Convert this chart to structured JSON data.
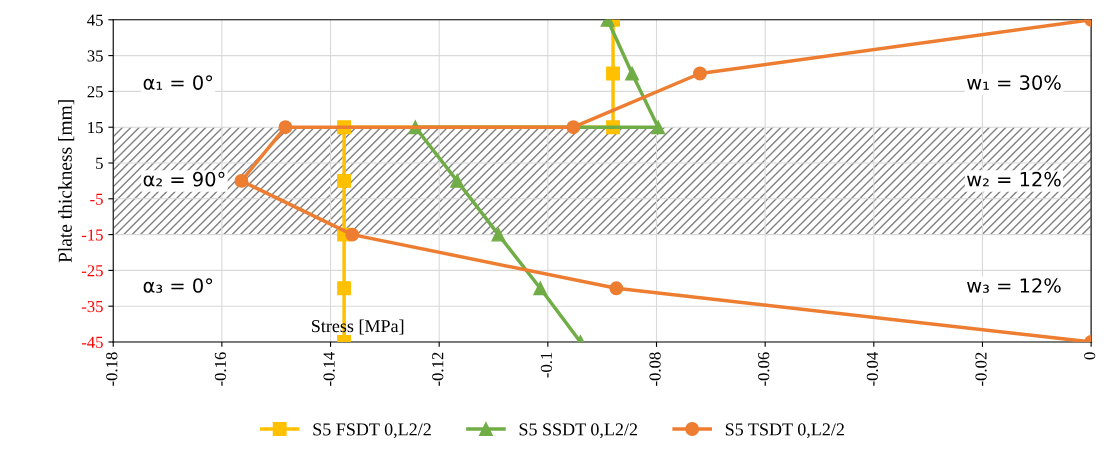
{
  "chart_data": {
    "type": "line",
    "xlabel": "Stress [MPa]",
    "ylabel": "Plate thickness [mm]",
    "series": [
      {
        "name": "S5 FSDT 0,L2/2",
        "color": "#ffc000",
        "marker": "square",
        "x": [
          -0.088,
          -0.088,
          -0.088,
          -0.1375,
          -0.1375,
          -0.1375,
          -0.1375,
          -0.1375
        ],
        "values": [
          45,
          30,
          15,
          15,
          0,
          -15,
          -30,
          -45
        ]
      },
      {
        "name": "S5 SSDT 0,L2/2",
        "color": "#70ad47",
        "marker": "triangle",
        "x": [
          -0.089,
          -0.0845,
          -0.0797,
          -0.1244,
          -0.1167,
          -0.1091,
          -0.1014,
          -0.094
        ],
        "values": [
          45,
          30,
          15,
          15,
          0,
          -15,
          -30,
          -45
        ]
      },
      {
        "name": "S5 TSDT 0,L2/2",
        "color": "#ed7d31",
        "marker": "circle",
        "x": [
          0,
          -0.072,
          -0.0953,
          -0.1483,
          -0.1564,
          -0.136,
          -0.0874,
          0
        ],
        "values": [
          45,
          30,
          15,
          15,
          0,
          -15,
          -30,
          -45
        ]
      }
    ],
    "xlim": [
      -0.18,
      0
    ],
    "xticks": [
      -0.18,
      -0.16,
      -0.14,
      -0.12,
      -0.1,
      -0.08,
      -0.06,
      -0.04,
      -0.02,
      0
    ],
    "ylim": [
      -45,
      45
    ],
    "yticks": [
      -45,
      -35,
      -25,
      -15,
      -5,
      5,
      15,
      25,
      35,
      45
    ],
    "bands": [
      {
        "axis": "y",
        "from": -15,
        "to": 15,
        "color": "#808080"
      }
    ],
    "annotations": [
      "α₁ = 0°",
      "α₂ = 90°",
      "α₃ = 0°",
      "w₁ = 30%",
      "w₂ = 12%",
      "w₃ = 12%"
    ],
    "grid": true,
    "legend": "bottom",
    "line_style": "solid"
  }
}
